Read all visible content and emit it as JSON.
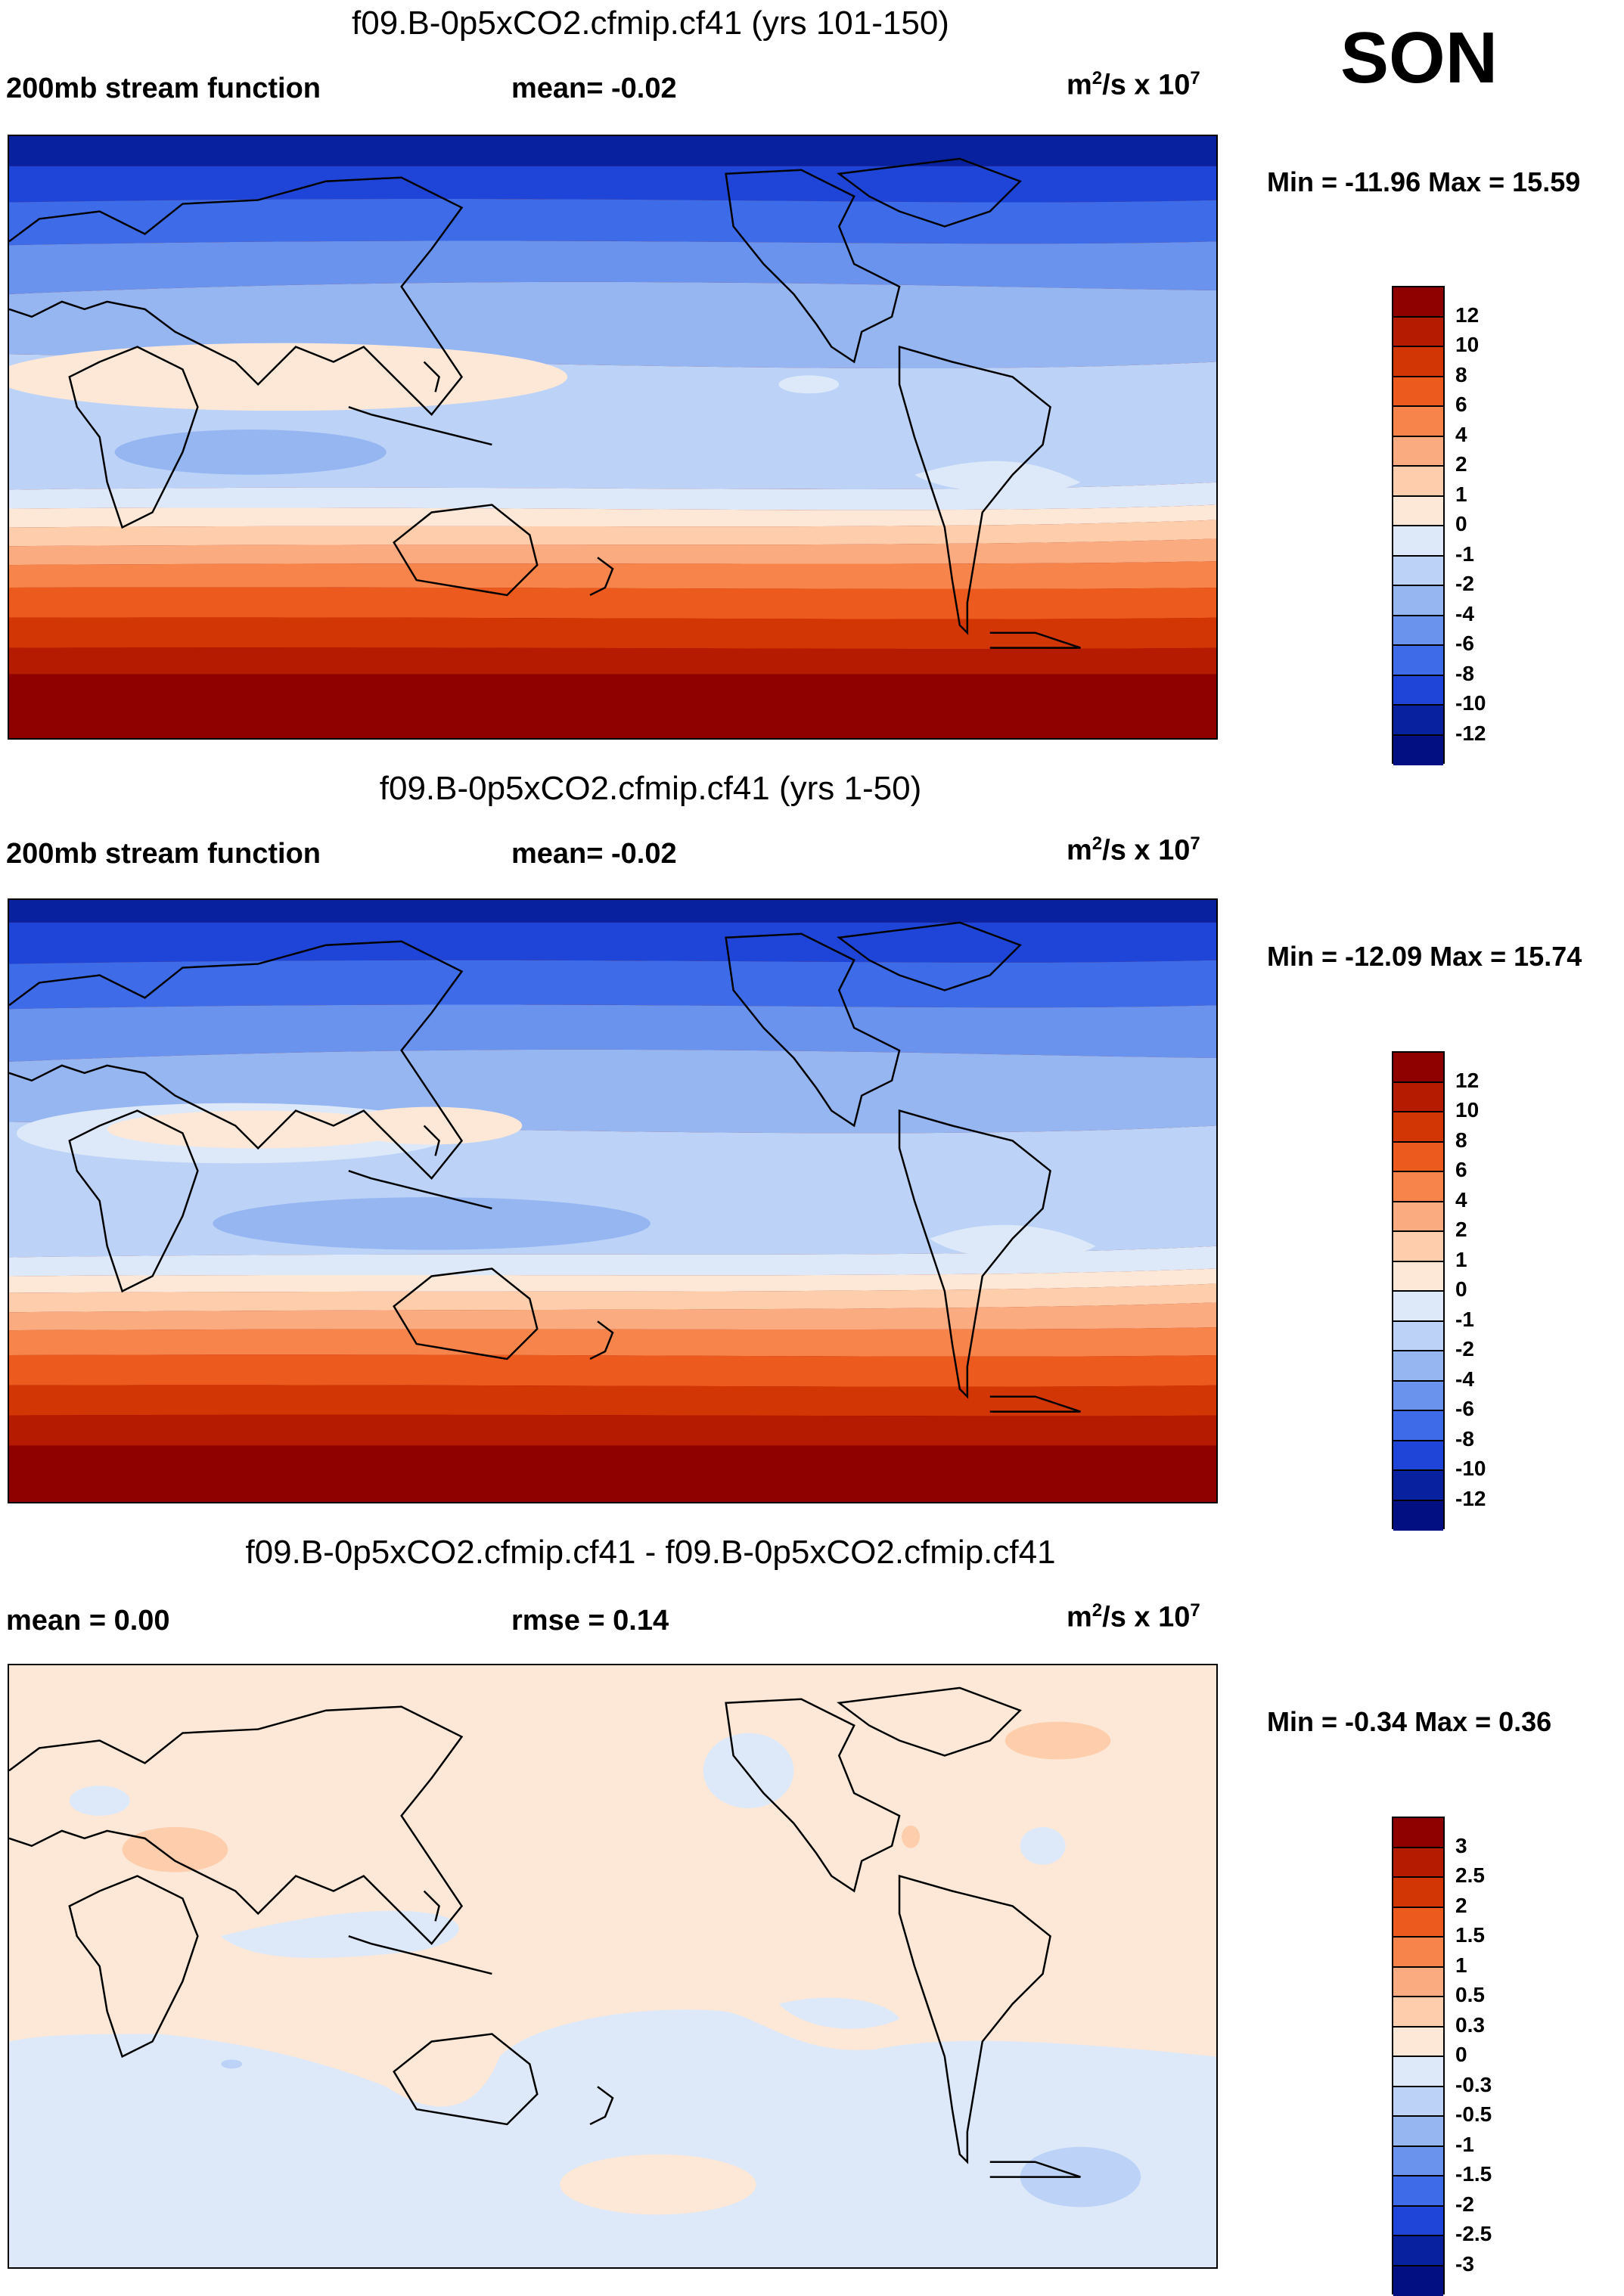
{
  "season": "SON",
  "panels": [
    {
      "title": "f09.B-0p5xCO2.cfmip.cf41 (yrs 101-150)",
      "left_label": "200mb stream function",
      "center_label": "mean=  -0.02",
      "units": "m",
      "units_sup": "2",
      "units_tail": "/s x 10",
      "units_exp": "7",
      "minmax": "Min = -11.96 Max =  15.59",
      "colorbar": {
        "levels": [
          "12",
          "10",
          "8",
          "6",
          "4",
          "2",
          "1",
          "0",
          "-1",
          "-2",
          "-4",
          "-6",
          "-8",
          "-10",
          "-12"
        ],
        "colors": [
          "#8f0000",
          "#b41b00",
          "#d33605",
          "#ec5a1e",
          "#f6844b",
          "#faab80",
          "#fdcdac",
          "#fde8d7",
          "#dde9f9",
          "#bcd3f7",
          "#96b6f2",
          "#6a93ee",
          "#3e6ce9",
          "#1f45d8",
          "#08229f",
          "#010f83"
        ]
      }
    },
    {
      "title": "f09.B-0p5xCO2.cfmip.cf41 (yrs 1-50)",
      "left_label": "200mb stream function",
      "center_label": "mean=  -0.02",
      "units": "m",
      "units_sup": "2",
      "units_tail": "/s x 10",
      "units_exp": "7",
      "minmax": "Min = -12.09 Max =  15.74",
      "colorbar": {
        "levels": [
          "12",
          "10",
          "8",
          "6",
          "4",
          "2",
          "1",
          "0",
          "-1",
          "-2",
          "-4",
          "-6",
          "-8",
          "-10",
          "-12"
        ],
        "colors": [
          "#8f0000",
          "#b41b00",
          "#d33605",
          "#ec5a1e",
          "#f6844b",
          "#faab80",
          "#fdcdac",
          "#fde8d7",
          "#dde9f9",
          "#bcd3f7",
          "#96b6f2",
          "#6a93ee",
          "#3e6ce9",
          "#1f45d8",
          "#08229f",
          "#010f83"
        ]
      }
    },
    {
      "title": "f09.B-0p5xCO2.cfmip.cf41 - f09.B-0p5xCO2.cfmip.cf41",
      "left_label": "mean =   0.00",
      "center_label": "rmse =   0.14",
      "units": "m",
      "units_sup": "2",
      "units_tail": "/s x 10",
      "units_exp": "7",
      "minmax": "Min =  -0.34 Max =   0.36",
      "colorbar": {
        "levels": [
          "3",
          "2.5",
          "2",
          "1.5",
          "1",
          "0.5",
          "0.3",
          "0",
          "-0.3",
          "-0.5",
          "-1",
          "-1.5",
          "-2",
          "-2.5",
          "-3"
        ],
        "colors": [
          "#8f0000",
          "#b41b00",
          "#d33605",
          "#ec5a1e",
          "#f6844b",
          "#faab80",
          "#fdcdac",
          "#fde8d7",
          "#dde9f9",
          "#bcd3f7",
          "#96b6f2",
          "#6a93ee",
          "#3e6ce9",
          "#1f45d8",
          "#08229f",
          "#010f83"
        ]
      }
    }
  ]
}
